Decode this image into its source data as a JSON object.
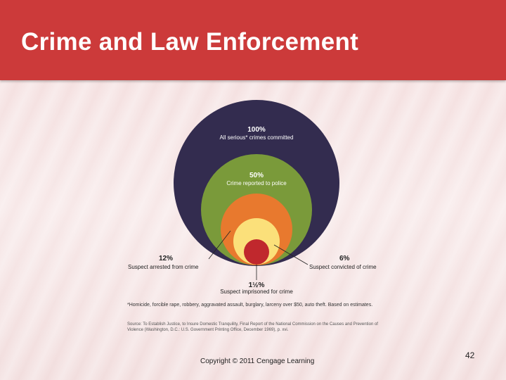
{
  "slide": {
    "title": "Crime and Law Enforcement",
    "copyright": "Copyright © 2011 Cengage Learning",
    "page_number": "42"
  },
  "diagram": {
    "circles": [
      {
        "pct": "100%",
        "label": "All serious* crimes committed",
        "color": "#332c4f"
      },
      {
        "pct": "50%",
        "label": "Crime reported to police",
        "color": "#7a9a3a"
      },
      {
        "pct": "12%",
        "label": "Suspect arrested from crime",
        "color": "#e8792e"
      },
      {
        "pct": "6%",
        "label": "Suspect convicted of crime",
        "color": "#fbe07a"
      },
      {
        "pct": "1½%",
        "label": "Suspect imprisoned for crime",
        "color": "#c0282d"
      }
    ],
    "footnote": "*Homicide, forcible rape, robbery, aggravated assault, burglary, larceny over $50, auto theft. Based on estimates.",
    "source": "Source: To Establish Justice, to Insure Domestic Tranquility, Final Report of the National Commission on the Causes and Prevention of Violence (Washington, D.C.: U.S. Government Printing Office, December 1969), p. xvi."
  }
}
